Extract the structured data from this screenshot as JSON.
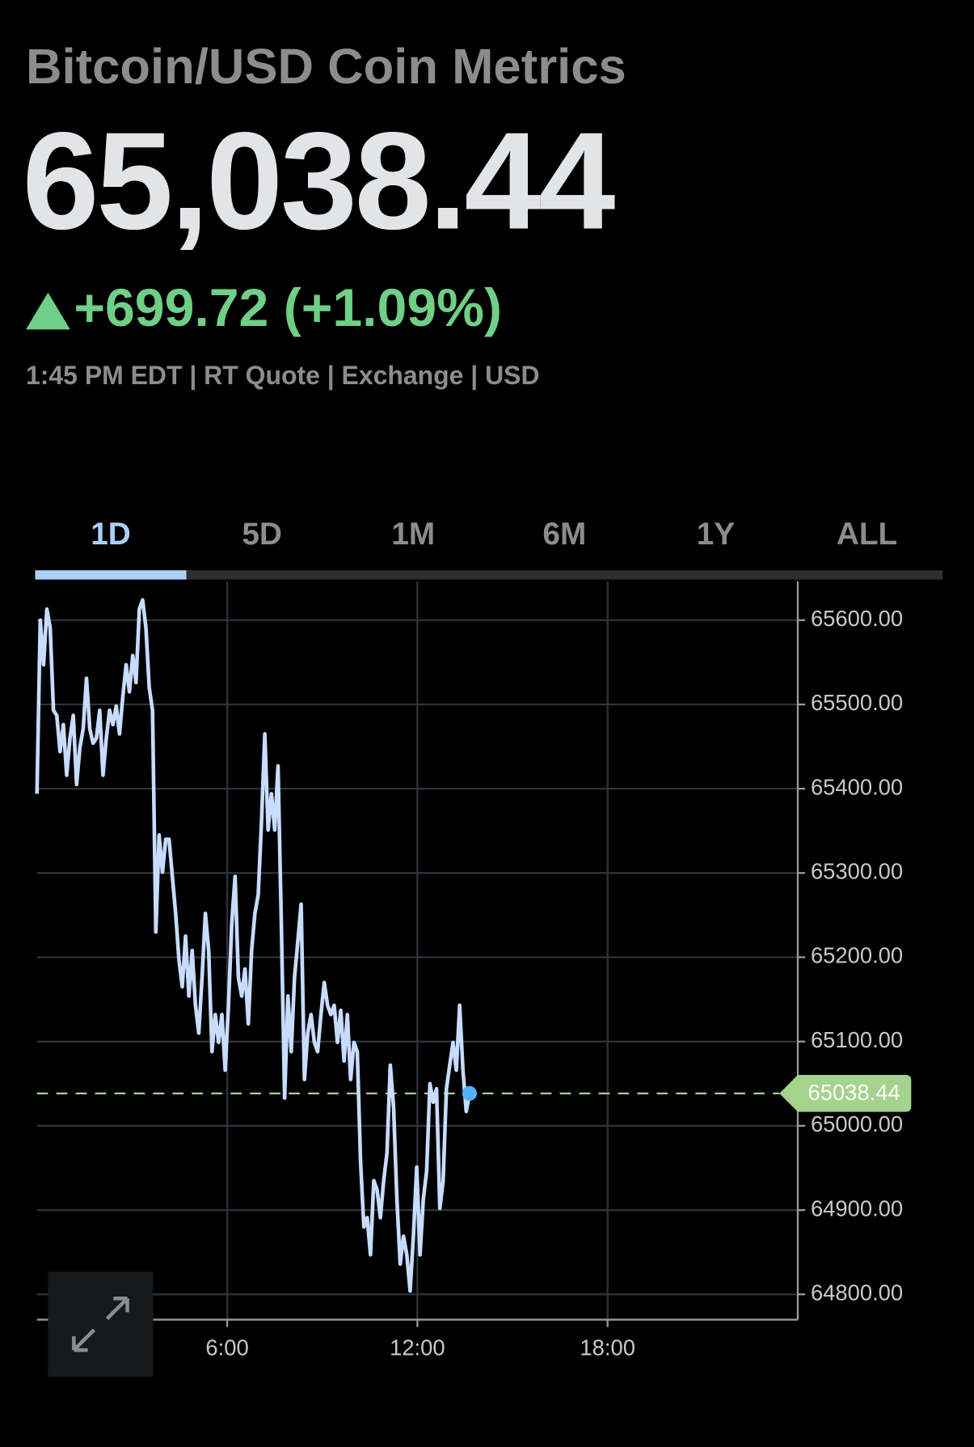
{
  "header": {
    "title": "Bitcoin/USD Coin Metrics",
    "price": "65,038.44",
    "change": "+699.72 (+1.09%)",
    "meta": "1:45 PM EDT | RT Quote | Exchange | USD"
  },
  "tabs": {
    "items": [
      "1D",
      "5D",
      "1M",
      "6M",
      "1Y",
      "ALL"
    ],
    "selected": 0
  },
  "chart_data": {
    "type": "line",
    "x": [
      0,
      6.25,
      12.5,
      18.75,
      25,
      31.25,
      37.5,
      43.75,
      50,
      56.25,
      62.5,
      68.75,
      75,
      81.25,
      87.5,
      93.75,
      100,
      106.25,
      112.5,
      118.75,
      125,
      131.25,
      137.5,
      143.75,
      150,
      156.25,
      162.5,
      168.75,
      175,
      181.25,
      187.5,
      193.75,
      200,
      206.25,
      212.5,
      218.75,
      225,
      231.25,
      237.5,
      243.75,
      250,
      256.25,
      262.5,
      268.75,
      275,
      281.25,
      287.5,
      293.75,
      300,
      306.25,
      312.5,
      318.75,
      325,
      331.25,
      337.5,
      343.75,
      350,
      356.25,
      362.5,
      368.75,
      375,
      381.25,
      387.5,
      393.75,
      400,
      406.25,
      412.5,
      418.75,
      425,
      431.25,
      437.5,
      443.75,
      450,
      456.25,
      462.5,
      468.75,
      475,
      481.25,
      487.5,
      493.75,
      500,
      506.25,
      512.5,
      518.75,
      525,
      531.25,
      537.5,
      543.75,
      550,
      556.25,
      562.5,
      568.75,
      575,
      581.25,
      587.5,
      593.75,
      600,
      606.25,
      612.5,
      618.75,
      625,
      631.25,
      637.5,
      643.75,
      650,
      656.25,
      662.5,
      668.75,
      675,
      681.25,
      687.5,
      693.75,
      700,
      706.25,
      712.5,
      718.75,
      725,
      731.25,
      737.5,
      743.75,
      750,
      756.25,
      762.5,
      768.75,
      775,
      781.25,
      787.5,
      793.75,
      800,
      806.25,
      812.5,
      818.75
    ],
    "series": [
      {
        "name": "Bitcoin/USD",
        "color": "#c7dcff",
        "values": [
          65394,
          65600,
          65547,
          65613,
          65591,
          65493,
          65487,
          65444,
          65476,
          65416,
          65460,
          65487,
          65405,
          65449,
          65471,
          65531,
          65471,
          65454,
          65460,
          65493,
          65416,
          65460,
          65493,
          65476,
          65498,
          65465,
          65509,
          65547,
          65515,
          65558,
          65526,
          65613,
          65624,
          65591,
          65520,
          65493,
          65230,
          65345,
          65301,
          65340,
          65340,
          65296,
          65252,
          65197,
          65165,
          65225,
          65154,
          65208,
          65143,
          65110,
          65176,
          65252,
          65208,
          65088,
          65132,
          65099,
          65132,
          65066,
          65143,
          65241,
          65296,
          65176,
          65154,
          65186,
          65121,
          65208,
          65252,
          65274,
          65361,
          65465,
          65351,
          65394,
          65351,
          65427,
          65241,
          65033,
          65154,
          65088,
          65176,
          65219,
          65263,
          65055,
          65110,
          65132,
          65099,
          65088,
          65132,
          65170,
          65143,
          65132,
          65143,
          65099,
          65137,
          65077,
          65132,
          65055,
          65099,
          65088,
          64957,
          64880,
          64891,
          64847,
          64935,
          64924,
          64891,
          64935,
          64968,
          65072,
          65022,
          64913,
          64836,
          64869,
          64847,
          64804,
          64869,
          64951,
          64847,
          64913,
          64946,
          65050,
          65028,
          65044,
          64902,
          64935,
          65044,
          65072,
          65099,
          65066,
          65143,
          65066,
          65017,
          65038.44
        ]
      }
    ],
    "current_price": 65038.44,
    "marker_color": "#4fb3ff",
    "price_line_color": "#a3d38c",
    "xlim": [
      0,
      1440
    ],
    "xticks": [
      {
        "value": 360,
        "label": "6:00"
      },
      {
        "value": 720,
        "label": "12:00"
      },
      {
        "value": 1080,
        "label": "18:00"
      }
    ],
    "ylim": [
      64770,
      65646
    ],
    "yticks": [
      {
        "value": 64800,
        "label": "64800.00"
      },
      {
        "value": 64900,
        "label": "64900.00"
      },
      {
        "value": 65000,
        "label": "65000.00"
      },
      {
        "value": 65100,
        "label": "65100.00"
      },
      {
        "value": 65200,
        "label": "65200.00"
      },
      {
        "value": 65300,
        "label": "65300.00"
      },
      {
        "value": 65400,
        "label": "65400.00"
      },
      {
        "value": 65500,
        "label": "65500.00"
      },
      {
        "value": 65600,
        "label": "65600.00"
      }
    ],
    "grid": true
  }
}
